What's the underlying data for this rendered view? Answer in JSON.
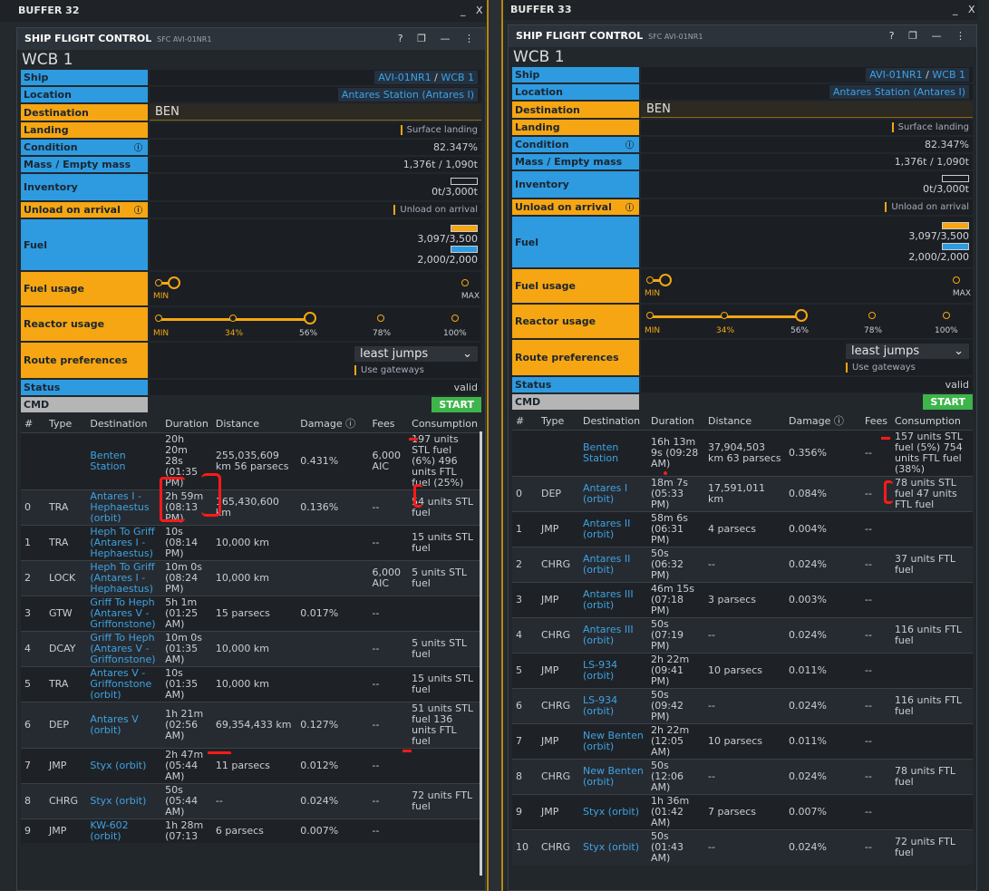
{
  "left": {
    "buffer_title": "BUFFER 32",
    "tile_title": "SHIP FLIGHT CONTROL",
    "tile_sub": "SFC AVI-01NR1",
    "wcb": "WCB 1",
    "labels": {
      "ship": "Ship",
      "location": "Location",
      "destination": "Destination",
      "landing": "Landing",
      "condition": "Condition",
      "mass": "Mass / Empty mass",
      "inventory": "Inventory",
      "unload": "Unload on arrival",
      "fuel": "Fuel",
      "fuel_usage": "Fuel usage",
      "reactor_usage": "Reactor usage",
      "route_prefs": "Route preferences",
      "status": "Status",
      "cmd": "CMD"
    },
    "ship_a": "AVI-01NR1",
    "ship_sep": " / ",
    "ship_b": "WCB 1",
    "location": "Antares Station (Antares I)",
    "destination": "BEN",
    "landing": "Surface landing",
    "condition": "82.347%",
    "mass": "1,376t / 1,090t",
    "inventory": "0t/3,000t",
    "unload": "Unload on arrival",
    "fuel_stl": "3,097/3,500",
    "fuel_ftl": "2,000/2,000",
    "fuel_usage_min": "MIN",
    "fuel_usage_max": "MAX",
    "reactor_ticks": [
      "MIN",
      "34%",
      "56%",
      "78%",
      "100%"
    ],
    "route": "least jumps",
    "gateways": "Use gateways",
    "status": "valid",
    "start": "START",
    "columns": [
      "#",
      "Type",
      "Destination",
      "Duration",
      "Distance",
      "Damage ⓘ",
      "Fees",
      "Consumption"
    ],
    "rows": [
      {
        "n": "",
        "type": "",
        "dest": "Benten Station",
        "dur": "20h 20m 28s (01:35 PM)",
        "dist": "255,035,609 km 56 parsecs",
        "dmg": "0.431%",
        "fees": "6,000 AIC",
        "cons": "197 units STL fuel (6%) 496 units FTL fuel (25%)"
      },
      {
        "n": "0",
        "type": "TRA",
        "dest": "Antares I - Hephaestus (orbit)",
        "dur": "2h 59m (08:13 PM)",
        "dist": "165,430,600 km",
        "dmg": "0.136%",
        "fees": "--",
        "cons": "54 units STL fuel"
      },
      {
        "n": "1",
        "type": "TRA",
        "dest": "Heph To Griff (Antares I - Hephaestus)",
        "dur": "10s (08:14 PM)",
        "dist": "10,000 km",
        "dmg": "",
        "fees": "--",
        "cons": "15 units STL fuel"
      },
      {
        "n": "2",
        "type": "LOCK",
        "dest": "Heph To Griff (Antares I - Hephaestus)",
        "dur": "10m 0s (08:24 PM)",
        "dist": "10,000 km",
        "dmg": "",
        "fees": "6,000 AIC",
        "cons": "5 units STL fuel"
      },
      {
        "n": "3",
        "type": "GTW",
        "dest": "Griff To Heph (Antares V - Griffonstone)",
        "dur": "5h 1m (01:25 AM)",
        "dist": "15 parsecs",
        "dmg": "0.017%",
        "fees": "--",
        "cons": ""
      },
      {
        "n": "4",
        "type": "DCAY",
        "dest": "Griff To Heph (Antares V - Griffonstone)",
        "dur": "10m 0s (01:35 AM)",
        "dist": "10,000 km",
        "dmg": "",
        "fees": "--",
        "cons": "5 units STL fuel"
      },
      {
        "n": "5",
        "type": "TRA",
        "dest": "Antares V - Griffonstone (orbit)",
        "dur": "10s (01:35 AM)",
        "dist": "10,000 km",
        "dmg": "",
        "fees": "--",
        "cons": "15 units STL fuel"
      },
      {
        "n": "6",
        "type": "DEP",
        "dest": "Antares V (orbit)",
        "dur": "1h 21m (02:56 AM)",
        "dist": "69,354,433 km",
        "dmg": "0.127%",
        "fees": "--",
        "cons": "51 units STL fuel 136 units FTL fuel"
      },
      {
        "n": "7",
        "type": "JMP",
        "dest": "Styx (orbit)",
        "dur": "2h 47m (05:44 AM)",
        "dist": "11 parsecs",
        "dmg": "0.012%",
        "fees": "--",
        "cons": ""
      },
      {
        "n": "8",
        "type": "CHRG",
        "dest": "Styx (orbit)",
        "dur": "50s (05:44 AM)",
        "dist": "--",
        "dmg": "0.024%",
        "fees": "--",
        "cons": "72 units FTL fuel"
      },
      {
        "n": "9",
        "type": "JMP",
        "dest": "KW-602 (orbit)",
        "dur": "1h 28m (07:13",
        "dist": "6 parsecs",
        "dmg": "0.007%",
        "fees": "--",
        "cons": ""
      }
    ]
  },
  "right": {
    "buffer_title": "BUFFER 33",
    "tile_title": "SHIP FLIGHT CONTROL",
    "tile_sub": "SFC AVI-01NR1",
    "wcb": "WCB 1",
    "ship_a": "AVI-01NR1",
    "ship_sep": " / ",
    "ship_b": "WCB 1",
    "location": "Antares Station (Antares I)",
    "destination": "BEN",
    "landing": "Surface landing",
    "condition": "82.347%",
    "mass": "1,376t / 1,090t",
    "inventory": "0t/3,000t",
    "unload": "Unload on arrival",
    "fuel_stl": "3,097/3,500",
    "fuel_ftl": "2,000/2,000",
    "route": "least jumps",
    "gateways": "Use gateways",
    "status": "valid",
    "start": "START",
    "rows": [
      {
        "n": "",
        "type": "",
        "dest": "Benten Station",
        "dur": "16h 13m 9s (09:28 AM)",
        "dist": "37,904,503 km 63 parsecs",
        "dmg": "0.356%",
        "fees": "--",
        "cons": "157 units STL fuel (5%) 754 units FTL fuel (38%)"
      },
      {
        "n": "0",
        "type": "DEP",
        "dest": "Antares I (orbit)",
        "dur": "18m 7s (05:33 PM)",
        "dist": "17,591,011 km",
        "dmg": "0.084%",
        "fees": "--",
        "cons": "78 units STL fuel 47 units FTL fuel"
      },
      {
        "n": "1",
        "type": "JMP",
        "dest": "Antares II (orbit)",
        "dur": "58m 6s (06:31 PM)",
        "dist": "4 parsecs",
        "dmg": "0.004%",
        "fees": "--",
        "cons": ""
      },
      {
        "n": "2",
        "type": "CHRG",
        "dest": "Antares II (orbit)",
        "dur": "50s (06:32 PM)",
        "dist": "--",
        "dmg": "0.024%",
        "fees": "--",
        "cons": "37 units FTL fuel"
      },
      {
        "n": "3",
        "type": "JMP",
        "dest": "Antares III (orbit)",
        "dur": "46m 15s (07:18 PM)",
        "dist": "3 parsecs",
        "dmg": "0.003%",
        "fees": "--",
        "cons": ""
      },
      {
        "n": "4",
        "type": "CHRG",
        "dest": "Antares III (orbit)",
        "dur": "50s (07:19 PM)",
        "dist": "--",
        "dmg": "0.024%",
        "fees": "--",
        "cons": "116 units FTL fuel"
      },
      {
        "n": "5",
        "type": "JMP",
        "dest": "LS-934 (orbit)",
        "dur": "2h 22m (09:41 PM)",
        "dist": "10 parsecs",
        "dmg": "0.011%",
        "fees": "--",
        "cons": ""
      },
      {
        "n": "6",
        "type": "CHRG",
        "dest": "LS-934 (orbit)",
        "dur": "50s (09:42 PM)",
        "dist": "--",
        "dmg": "0.024%",
        "fees": "--",
        "cons": "116 units FTL fuel"
      },
      {
        "n": "7",
        "type": "JMP",
        "dest": "New Benten (orbit)",
        "dur": "2h 22m (12:05 AM)",
        "dist": "10 parsecs",
        "dmg": "0.011%",
        "fees": "--",
        "cons": ""
      },
      {
        "n": "8",
        "type": "CHRG",
        "dest": "New Benten (orbit)",
        "dur": "50s (12:06 AM)",
        "dist": "--",
        "dmg": "0.024%",
        "fees": "--",
        "cons": "78 units FTL fuel"
      },
      {
        "n": "9",
        "type": "JMP",
        "dest": "Styx (orbit)",
        "dur": "1h 36m (01:42 AM)",
        "dist": "7 parsecs",
        "dmg": "0.007%",
        "fees": "--",
        "cons": ""
      },
      {
        "n": "10",
        "type": "CHRG",
        "dest": "Styx (orbit)",
        "dur": "50s (01:43 AM)",
        "dist": "--",
        "dmg": "0.024%",
        "fees": "--",
        "cons": "72 units FTL fuel"
      }
    ]
  },
  "window_controls": {
    "min": "_",
    "close": "X",
    "help": "?",
    "tile_icons": "❐ — ⋮"
  }
}
